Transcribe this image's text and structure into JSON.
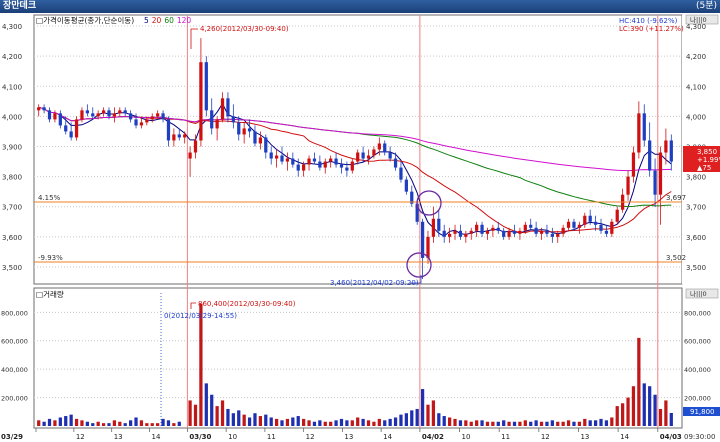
{
  "window": {
    "title": "장만데크",
    "interval_badge": "(5분)"
  },
  "price_panel": {
    "legend_title": "가격이동평균(종가,단순이동)",
    "ma_periods": [
      {
        "label": "5",
        "color": "#000080"
      },
      {
        "label": "20",
        "color": "#d01010"
      },
      {
        "label": "60",
        "color": "#108010"
      },
      {
        "label": "120",
        "color": "#d010d0"
      }
    ],
    "hc_text": "HC:410 (-9.62%)",
    "lc_text": "LC:390 (+11.27%)",
    "y_ticks": [
      "4,300",
      "4,200",
      "4,100",
      "4,000",
      "3,900",
      "3,800",
      "3,700",
      "3,600",
      "3,500"
    ],
    "current_price_box": [
      "3,850",
      "+1.99%",
      "▲75"
    ],
    "high_annotation": "4,260(2012/03/30-09:40)",
    "low_annotation": "3,460(2012/04/02-09:20)",
    "hline_upper": {
      "left_label": "4.15%",
      "right_label": "3,697"
    },
    "hline_lower": {
      "left_label": "-9.93%",
      "right_label": "3,502"
    }
  },
  "volume_panel": {
    "legend_title": "거래량",
    "y_ticks": [
      "800,000",
      "600,000",
      "400,000",
      "200,000"
    ],
    "peak_annotation": "860,400(2012/03/30-09:40)",
    "zero_annotation": "0(2012/03/29-14:55)",
    "current_volume": "91,800"
  },
  "x_axis": {
    "labels": [
      "03/29",
      "12",
      "13",
      "14",
      "03/30",
      "10",
      "11",
      "12",
      "13",
      "14",
      "04/02",
      "10",
      "11",
      "12",
      "13",
      "14",
      "04/03"
    ],
    "end_label": "09:30:00"
  },
  "corner_buttons": [
    "나|||0",
    "나|||0"
  ],
  "chart_data": {
    "type": "candlestick",
    "interval": "5min",
    "session_start_labels": [
      "03/29",
      "03/30",
      "04/02",
      "04/03"
    ],
    "price_axis_range": [
      3450,
      4330
    ],
    "volume_axis_range": [
      0,
      950000
    ],
    "candles": [
      [
        4020,
        4040,
        4000,
        4030,
        40000
      ],
      [
        4030,
        4040,
        4010,
        4020,
        30000
      ],
      [
        4020,
        4030,
        3980,
        3990,
        50000
      ],
      [
        3990,
        4020,
        3980,
        4010,
        40000
      ],
      [
        4010,
        4020,
        3960,
        3970,
        60000
      ],
      [
        3970,
        4000,
        3940,
        3950,
        70000
      ],
      [
        3950,
        3980,
        3920,
        3930,
        80000
      ],
      [
        3930,
        4000,
        3920,
        3990,
        50000
      ],
      [
        3990,
        4030,
        3980,
        4020,
        40000
      ],
      [
        4020,
        4040,
        4000,
        4010,
        30000
      ],
      [
        4010,
        4030,
        3990,
        4000,
        20000
      ],
      [
        4000,
        4020,
        3990,
        4010,
        30000
      ],
      [
        4010,
        4030,
        4000,
        4020,
        20000
      ],
      [
        4020,
        4030,
        3990,
        4000,
        20000
      ],
      [
        4000,
        4030,
        3980,
        4010,
        40000
      ],
      [
        4010,
        4030,
        4000,
        4020,
        30000
      ],
      [
        4020,
        4030,
        4000,
        4010,
        20000
      ],
      [
        4010,
        4020,
        3980,
        3990,
        40000
      ],
      [
        3990,
        4010,
        3960,
        3970,
        60000
      ],
      [
        3970,
        4000,
        3960,
        3980,
        40000
      ],
      [
        3980,
        4000,
        3970,
        3990,
        20000
      ],
      [
        3990,
        4010,
        3980,
        4000,
        20000
      ],
      [
        4000,
        4020,
        3990,
        4010,
        20000
      ],
      [
        4010,
        4020,
        3980,
        3990,
        50000
      ],
      [
        3990,
        4000,
        3900,
        3920,
        40000
      ],
      [
        3920,
        3960,
        3900,
        3940,
        20000
      ],
      [
        3940,
        3960,
        3920,
        3930,
        30000
      ],
      [
        3930,
        3950,
        3910,
        3940,
        0
      ],
      [
        3860,
        3900,
        3800,
        3880,
        180000
      ],
      [
        3880,
        3940,
        3860,
        3920,
        150000
      ],
      [
        3920,
        4260,
        3900,
        4180,
        860400
      ],
      [
        4180,
        4200,
        4000,
        4020,
        300000
      ],
      [
        4020,
        4060,
        3940,
        3960,
        220000
      ],
      [
        3960,
        4000,
        3920,
        3990,
        140000
      ],
      [
        3990,
        4080,
        3980,
        4060,
        180000
      ],
      [
        4060,
        4080,
        3980,
        4000,
        120000
      ],
      [
        4000,
        4040,
        3960,
        3980,
        90000
      ],
      [
        3980,
        4000,
        3920,
        3940,
        110000
      ],
      [
        3940,
        3980,
        3910,
        3960,
        80000
      ],
      [
        3960,
        3990,
        3930,
        3950,
        60000
      ],
      [
        3950,
        3970,
        3900,
        3910,
        90000
      ],
      [
        3910,
        3950,
        3890,
        3930,
        70000
      ],
      [
        3930,
        3940,
        3860,
        3880,
        80000
      ],
      [
        3880,
        3900,
        3840,
        3860,
        60000
      ],
      [
        3860,
        3890,
        3830,
        3870,
        50000
      ],
      [
        3870,
        3900,
        3840,
        3850,
        40000
      ],
      [
        3850,
        3880,
        3820,
        3860,
        50000
      ],
      [
        3860,
        3880,
        3830,
        3840,
        60000
      ],
      [
        3840,
        3860,
        3800,
        3820,
        70000
      ],
      [
        3820,
        3850,
        3800,
        3840,
        50000
      ],
      [
        3840,
        3870,
        3820,
        3860,
        40000
      ],
      [
        3860,
        3880,
        3840,
        3850,
        30000
      ],
      [
        3850,
        3870,
        3820,
        3830,
        40000
      ],
      [
        3830,
        3860,
        3810,
        3850,
        30000
      ],
      [
        3850,
        3870,
        3830,
        3860,
        30000
      ],
      [
        3860,
        3880,
        3830,
        3840,
        40000
      ],
      [
        3840,
        3860,
        3810,
        3830,
        50000
      ],
      [
        3830,
        3850,
        3800,
        3820,
        40000
      ],
      [
        3820,
        3860,
        3810,
        3850,
        40000
      ],
      [
        3850,
        3890,
        3840,
        3880,
        60000
      ],
      [
        3880,
        3900,
        3850,
        3860,
        50000
      ],
      [
        3860,
        3890,
        3840,
        3870,
        40000
      ],
      [
        3870,
        3900,
        3860,
        3890,
        30000
      ],
      [
        3890,
        3930,
        3870,
        3910,
        50000
      ],
      [
        3910,
        3920,
        3870,
        3880,
        40000
      ],
      [
        3880,
        3900,
        3850,
        3860,
        50000
      ],
      [
        3860,
        3880,
        3820,
        3830,
        60000
      ],
      [
        3830,
        3850,
        3780,
        3790,
        80000
      ],
      [
        3790,
        3800,
        3740,
        3750,
        90000
      ],
      [
        3750,
        3770,
        3700,
        3710,
        110000
      ],
      [
        3710,
        3720,
        3640,
        3650,
        120000
      ],
      [
        3650,
        3660,
        3460,
        3530,
        260000
      ],
      [
        3530,
        3620,
        3510,
        3600,
        150000
      ],
      [
        3600,
        3700,
        3580,
        3660,
        180000
      ],
      [
        3660,
        3690,
        3600,
        3620,
        90000
      ],
      [
        3620,
        3640,
        3580,
        3600,
        70000
      ],
      [
        3600,
        3630,
        3580,
        3610,
        60000
      ],
      [
        3610,
        3640,
        3590,
        3620,
        50000
      ],
      [
        3620,
        3640,
        3590,
        3600,
        40000
      ],
      [
        3600,
        3620,
        3580,
        3610,
        40000
      ],
      [
        3610,
        3630,
        3590,
        3620,
        30000
      ],
      [
        3620,
        3650,
        3600,
        3640,
        40000
      ],
      [
        3640,
        3650,
        3600,
        3610,
        40000
      ],
      [
        3610,
        3630,
        3590,
        3620,
        30000
      ],
      [
        3620,
        3640,
        3600,
        3630,
        30000
      ],
      [
        3630,
        3650,
        3610,
        3620,
        30000
      ],
      [
        3620,
        3630,
        3590,
        3600,
        40000
      ],
      [
        3600,
        3630,
        3590,
        3620,
        30000
      ],
      [
        3620,
        3640,
        3600,
        3610,
        30000
      ],
      [
        3610,
        3630,
        3590,
        3620,
        30000
      ],
      [
        3620,
        3650,
        3610,
        3640,
        40000
      ],
      [
        3640,
        3660,
        3620,
        3630,
        30000
      ],
      [
        3630,
        3650,
        3600,
        3610,
        40000
      ],
      [
        3610,
        3630,
        3590,
        3620,
        30000
      ],
      [
        3620,
        3640,
        3600,
        3610,
        30000
      ],
      [
        3610,
        3630,
        3580,
        3600,
        40000
      ],
      [
        3600,
        3620,
        3580,
        3610,
        30000
      ],
      [
        3610,
        3640,
        3600,
        3630,
        30000
      ],
      [
        3630,
        3660,
        3620,
        3650,
        40000
      ],
      [
        3650,
        3660,
        3620,
        3630,
        30000
      ],
      [
        3630,
        3650,
        3610,
        3640,
        30000
      ],
      [
        3640,
        3680,
        3630,
        3670,
        50000
      ],
      [
        3670,
        3690,
        3640,
        3650,
        40000
      ],
      [
        3650,
        3670,
        3620,
        3640,
        40000
      ],
      [
        3640,
        3660,
        3610,
        3620,
        50000
      ],
      [
        3620,
        3640,
        3600,
        3610,
        40000
      ],
      [
        3610,
        3660,
        3600,
        3650,
        60000
      ],
      [
        3650,
        3700,
        3640,
        3690,
        140000
      ],
      [
        3690,
        3760,
        3680,
        3740,
        160000
      ],
      [
        3740,
        3820,
        3720,
        3800,
        200000
      ],
      [
        3800,
        3900,
        3780,
        3880,
        280000
      ],
      [
        3880,
        4050,
        3860,
        4010,
        620000
      ],
      [
        4010,
        4040,
        3900,
        3920,
        300000
      ],
      [
        3920,
        3980,
        3800,
        3820,
        280000
      ],
      [
        3820,
        3860,
        3700,
        3740,
        220000
      ],
      [
        3740,
        3900,
        3640,
        3880,
        120000
      ],
      [
        3880,
        3960,
        3840,
        3920,
        180000
      ],
      [
        3920,
        3940,
        3820,
        3850,
        91800
      ]
    ]
  }
}
